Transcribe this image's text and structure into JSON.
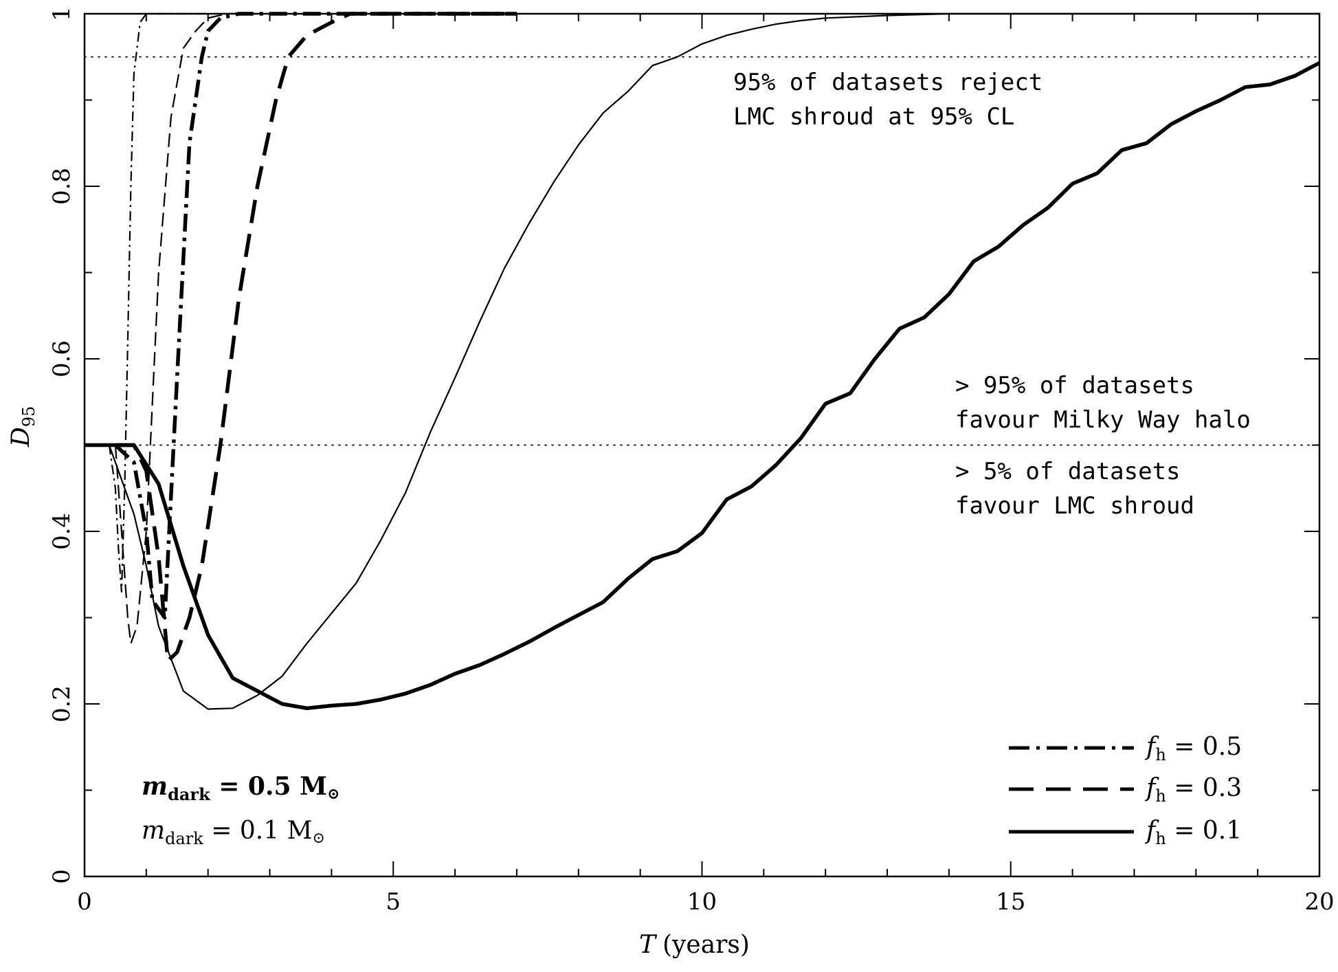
{
  "chart_data": {
    "type": "line",
    "xlabel": "T",
    "xlabel_unit": "(years)",
    "ylabel": "D",
    "ylabel_sub": "95",
    "xlim": [
      0,
      20
    ],
    "ylim": [
      0,
      1
    ],
    "x_ticks": [
      "0",
      "5",
      "10",
      "15",
      "20"
    ],
    "y_ticks": [
      "0",
      "0.2",
      "0.4",
      "0.6",
      "0.8",
      "1"
    ],
    "grid": false,
    "reference_lines": [
      0.95,
      0.5
    ],
    "annotations": [
      {
        "id": "reject1",
        "text": "95% of datasets reject"
      },
      {
        "id": "reject2",
        "text": "LMC shroud at 95% CL"
      },
      {
        "id": "favour_mw1",
        "text": "> 95% of datasets"
      },
      {
        "id": "favour_mw2",
        "text": "favour Milky Way halo"
      },
      {
        "id": "favour_lmc1",
        "text": "> 5% of datasets"
      },
      {
        "id": "favour_lmc2",
        "text": "favour LMC shroud"
      }
    ],
    "legend": {
      "placement": "bottom-right",
      "entries": [
        {
          "style": "dash-dot",
          "sym": "f",
          "sub": "h",
          "rest": " = 0.5"
        },
        {
          "style": "dashed",
          "sym": "f",
          "sub": "h",
          "rest": " = 0.3"
        },
        {
          "style": "solid",
          "sym": "f",
          "sub": "h",
          "rest": " = 0.1"
        }
      ]
    },
    "mass_key": {
      "placement": "bottom-left",
      "heavy": {
        "sym": "m",
        "sub": "dark",
        "rest": " = 0.5 M"
      },
      "light": {
        "sym": "m",
        "sub": "dark",
        "rest": " = 0.1 M"
      },
      "sun_symbol": "⊙"
    },
    "series": [
      {
        "fh": 0.5,
        "mass": 0.5,
        "style": "dash-dot",
        "weight": "thick",
        "x": [
          0.5,
          0.8,
          1.0,
          1.1,
          1.3,
          1.5,
          1.7,
          1.9,
          2.0,
          2.2,
          2.5,
          3.0,
          4.0,
          5.0,
          6.0,
          7.0
        ],
        "y": [
          0.5,
          0.48,
          0.4,
          0.32,
          0.3,
          0.58,
          0.85,
          0.95,
          0.98,
          0.995,
          1.0,
          1.0,
          1.0,
          1.0,
          1.0,
          1.0
        ]
      },
      {
        "fh": 0.5,
        "mass": 0.1,
        "style": "dash-dot",
        "weight": "thin",
        "x": [
          0.4,
          0.5,
          0.55,
          0.6,
          0.65,
          0.7,
          0.75,
          0.8,
          0.9,
          1.0,
          1.1,
          1.2,
          1.5,
          2.0
        ],
        "y": [
          0.5,
          0.45,
          0.38,
          0.33,
          0.45,
          0.62,
          0.8,
          0.93,
          0.99,
          1.0,
          1.0,
          1.0,
          1.0,
          1.0
        ]
      },
      {
        "fh": 0.3,
        "mass": 0.5,
        "style": "dashed",
        "weight": "thick",
        "x": [
          0.5,
          0.8,
          1.0,
          1.2,
          1.35,
          1.5,
          1.7,
          1.9,
          2.2,
          2.5,
          2.8,
          3.1,
          3.3,
          3.6,
          4.0,
          4.3,
          5.0,
          6.0,
          7.0
        ],
        "y": [
          0.5,
          0.5,
          0.47,
          0.37,
          0.25,
          0.26,
          0.3,
          0.36,
          0.5,
          0.67,
          0.8,
          0.9,
          0.95,
          0.975,
          0.99,
          1.0,
          1.0,
          1.0,
          1.0
        ]
      },
      {
        "fh": 0.3,
        "mass": 0.1,
        "style": "dashed",
        "weight": "thin",
        "x": [
          0.5,
          0.6,
          0.7,
          0.75,
          0.85,
          1.0,
          1.1,
          1.2,
          1.4,
          1.6,
          1.8,
          2.0,
          2.3,
          2.8
        ],
        "y": [
          0.5,
          0.4,
          0.3,
          0.27,
          0.29,
          0.4,
          0.55,
          0.7,
          0.88,
          0.96,
          0.98,
          0.995,
          1.0,
          1.0
        ]
      },
      {
        "fh": 0.1,
        "mass": 0.5,
        "style": "solid",
        "weight": "thick",
        "x": [
          0.0,
          0.4,
          0.8,
          1.2,
          1.6,
          2.0,
          2.4,
          2.8,
          3.2,
          3.6,
          4.0,
          4.4,
          4.8,
          5.2,
          5.6,
          6.0,
          6.4,
          6.8,
          7.2,
          7.6,
          8.0,
          8.4,
          8.8,
          9.2,
          9.6,
          10.0,
          10.4,
          10.8,
          11.2,
          11.6,
          12.0,
          12.4,
          12.8,
          13.2,
          13.6,
          14.0,
          14.4,
          14.8,
          15.2,
          15.6,
          16.0,
          16.4,
          16.8,
          17.2,
          17.6,
          18.0,
          18.4,
          18.8,
          19.2,
          19.6,
          20.0
        ],
        "y": [
          0.5,
          0.5,
          0.5,
          0.455,
          0.36,
          0.28,
          0.23,
          0.215,
          0.2,
          0.195,
          0.198,
          0.2,
          0.205,
          0.212,
          0.222,
          0.235,
          0.245,
          0.258,
          0.272,
          0.288,
          0.303,
          0.318,
          0.345,
          0.368,
          0.377,
          0.398,
          0.437,
          0.452,
          0.477,
          0.508,
          0.548,
          0.56,
          0.6,
          0.635,
          0.648,
          0.675,
          0.713,
          0.73,
          0.755,
          0.775,
          0.803,
          0.815,
          0.842,
          0.85,
          0.872,
          0.887,
          0.9,
          0.915,
          0.918,
          0.928,
          0.943
        ]
      },
      {
        "fh": 0.1,
        "mass": 0.1,
        "style": "solid",
        "weight": "thin",
        "x": [
          0.4,
          0.8,
          1.0,
          1.2,
          1.6,
          2.0,
          2.4,
          2.8,
          3.2,
          3.6,
          4.0,
          4.4,
          4.8,
          5.2,
          5.6,
          6.0,
          6.4,
          6.8,
          7.2,
          7.6,
          8.0,
          8.4,
          8.8,
          9.2,
          9.6,
          10.0,
          10.4,
          10.8,
          11.2,
          11.6,
          12.0,
          13.0,
          14.0,
          15.0,
          16.0,
          17.0,
          18.0,
          19.0,
          20.0
        ],
        "y": [
          0.5,
          0.42,
          0.36,
          0.29,
          0.215,
          0.194,
          0.195,
          0.21,
          0.232,
          0.27,
          0.305,
          0.34,
          0.39,
          0.445,
          0.515,
          0.578,
          0.643,
          0.705,
          0.757,
          0.805,
          0.848,
          0.885,
          0.91,
          0.94,
          0.95,
          0.965,
          0.975,
          0.982,
          0.988,
          0.992,
          0.995,
          0.998,
          1.0,
          1.0,
          1.0,
          1.0,
          1.0,
          1.0,
          1.0
        ]
      }
    ]
  }
}
